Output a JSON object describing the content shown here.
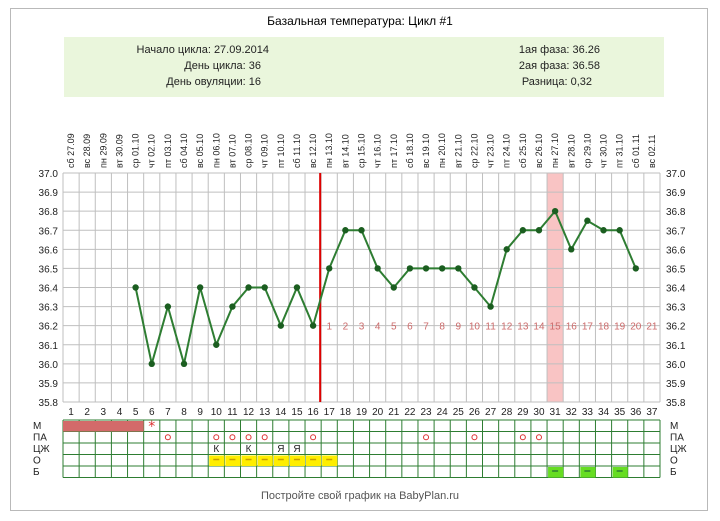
{
  "title": "Базальная температура: Цикл #1",
  "info": {
    "left": [
      {
        "label": "Начало цикла:",
        "value": "27.09.2014"
      },
      {
        "label": "День цикла:",
        "value": "36"
      },
      {
        "label": "День овуляции:",
        "value": "16"
      }
    ],
    "right": [
      {
        "label": "1ая фаза:",
        "value": "36.26"
      },
      {
        "label": "2ая фаза:",
        "value": "36.58"
      },
      {
        "label": "Разница:",
        "value": "0,32"
      }
    ]
  },
  "footer": "Постройте свой график на BabyPlan.ru",
  "colors": {
    "line": "#2e7d32",
    "point": "#1b5e20",
    "ovulation_line": "#dd0000",
    "highlight": "#f9c4c4",
    "grid": "#bfbfbf",
    "menstruation": "#d36a6a",
    "phase2_labels": "#cc6b6b",
    "yellow": "#ffee00",
    "green": "#66dd22",
    "panel": "#eaf6dc"
  },
  "chart_data": {
    "type": "line",
    "y_ticks": [
      "37.0",
      "36.9",
      "36.8",
      "36.7",
      "36.6",
      "36.5",
      "36.4",
      "36.3",
      "36.2",
      "36.1",
      "36.0",
      "35.9",
      "35.8"
    ],
    "ylim": [
      35.8,
      37.0
    ],
    "days": [
      1,
      2,
      3,
      4,
      5,
      6,
      7,
      8,
      9,
      10,
      11,
      12,
      13,
      14,
      15,
      16,
      17,
      18,
      19,
      20,
      21,
      22,
      23,
      24,
      25,
      26,
      27,
      28,
      29,
      30,
      31,
      32,
      33,
      34,
      35,
      36,
      37
    ],
    "dates": [
      {
        "wd": "сб",
        "d": "27.09"
      },
      {
        "wd": "вс",
        "d": "28.09"
      },
      {
        "wd": "пн",
        "d": "29.09"
      },
      {
        "wd": "вт",
        "d": "30.09"
      },
      {
        "wd": "ср",
        "d": "01.10"
      },
      {
        "wd": "чт",
        "d": "02.10"
      },
      {
        "wd": "пт",
        "d": "03.10"
      },
      {
        "wd": "сб",
        "d": "04.10"
      },
      {
        "wd": "вс",
        "d": "05.10"
      },
      {
        "wd": "пн",
        "d": "06.10"
      },
      {
        "wd": "вт",
        "d": "07.10"
      },
      {
        "wd": "ср",
        "d": "08.10"
      },
      {
        "wd": "чт",
        "d": "09.10"
      },
      {
        "wd": "пт",
        "d": "10.10"
      },
      {
        "wd": "сб",
        "d": "11.10"
      },
      {
        "wd": "вс",
        "d": "12.10"
      },
      {
        "wd": "пн",
        "d": "13.10"
      },
      {
        "wd": "вт",
        "d": "14.10"
      },
      {
        "wd": "ср",
        "d": "15.10"
      },
      {
        "wd": "чт",
        "d": "16.10"
      },
      {
        "wd": "пт",
        "d": "17.10"
      },
      {
        "wd": "сб",
        "d": "18.10"
      },
      {
        "wd": "вс",
        "d": "19.10"
      },
      {
        "wd": "пн",
        "d": "20.10"
      },
      {
        "wd": "вт",
        "d": "21.10"
      },
      {
        "wd": "ср",
        "d": "22.10"
      },
      {
        "wd": "чт",
        "d": "23.10"
      },
      {
        "wd": "пт",
        "d": "24.10"
      },
      {
        "wd": "сб",
        "d": "25.10"
      },
      {
        "wd": "вс",
        "d": "26.10"
      },
      {
        "wd": "пн",
        "d": "27.10"
      },
      {
        "wd": "вт",
        "d": "28.10"
      },
      {
        "wd": "ср",
        "d": "29.10"
      },
      {
        "wd": "чт",
        "d": "30.10"
      },
      {
        "wd": "пт",
        "d": "31.10"
      },
      {
        "wd": "сб",
        "d": "01.11"
      },
      {
        "wd": "вс",
        "d": "02.11"
      }
    ],
    "series": [
      {
        "x": [
          5,
          6,
          7,
          8,
          9,
          10,
          11,
          12,
          13,
          14,
          15,
          16,
          17,
          18,
          19,
          20,
          21,
          22,
          23,
          24,
          25,
          26,
          27,
          28,
          29,
          30,
          31,
          32,
          33,
          34,
          35,
          36
        ],
        "y": [
          36.4,
          36.0,
          36.3,
          36.0,
          36.4,
          36.1,
          36.3,
          36.4,
          36.4,
          36.2,
          36.4,
          36.2,
          36.5,
          36.7,
          36.7,
          36.5,
          36.4,
          36.5,
          36.5,
          36.5,
          36.5,
          36.4,
          36.3,
          36.6,
          36.7,
          36.7,
          36.8,
          36.6,
          36.75,
          36.7,
          36.7,
          36.5
        ]
      }
    ],
    "ovulation_day": 16,
    "highlight_day": 31,
    "phase2_numbers": [
      "1",
      "2",
      "3",
      "4",
      "5",
      "6",
      "7",
      "8",
      "9",
      "10",
      "11",
      "12",
      "13",
      "14",
      "15",
      "16",
      "17",
      "18",
      "19",
      "20",
      "21"
    ],
    "rows": [
      {
        "label": "М"
      },
      {
        "label": "ПА"
      },
      {
        "label": "ЦЖ"
      },
      {
        "label": "О"
      },
      {
        "label": "Б"
      }
    ],
    "menstruation_days": [
      1,
      2,
      3,
      4,
      5
    ],
    "star_day": 6,
    "pa_days": [
      7,
      10,
      11,
      12,
      13,
      16,
      23,
      26,
      29,
      30
    ],
    "czh_marks": [
      {
        "day": 10,
        "text": "К"
      },
      {
        "day": 12,
        "text": "К"
      },
      {
        "day": 14,
        "text": "Я"
      },
      {
        "day": 15,
        "text": "Я"
      }
    ],
    "o_days": [
      10,
      11,
      12,
      13,
      14,
      15,
      16,
      17
    ],
    "b_days": [
      31,
      33,
      35
    ]
  }
}
